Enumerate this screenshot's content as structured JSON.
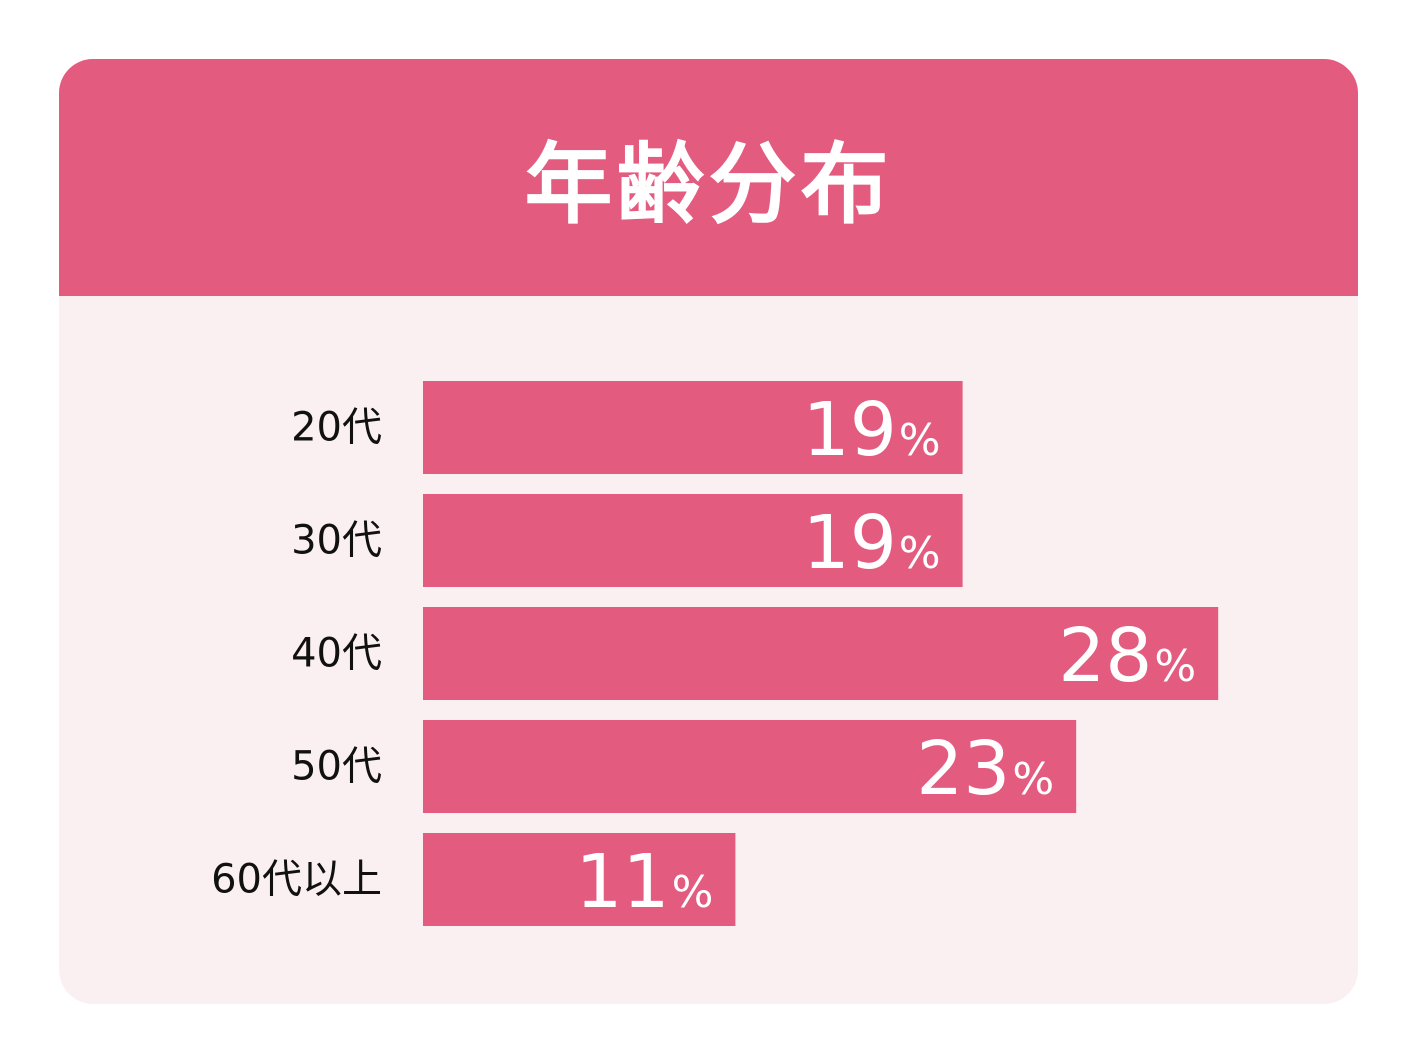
{
  "colors": {
    "accent": "#e35b7f",
    "panel_background": "#fbf0f1",
    "label_text": "#111111",
    "value_text": "#ffffff"
  },
  "chart_data": {
    "type": "bar",
    "orientation": "horizontal",
    "title": "年齢分布",
    "categories": [
      "20代",
      "30代",
      "40代",
      "50代",
      "60代以上"
    ],
    "values": [
      19,
      19,
      28,
      23,
      11
    ],
    "value_suffix": "%",
    "xlim": [
      0,
      100
    ],
    "grid": false,
    "legend": "none"
  }
}
